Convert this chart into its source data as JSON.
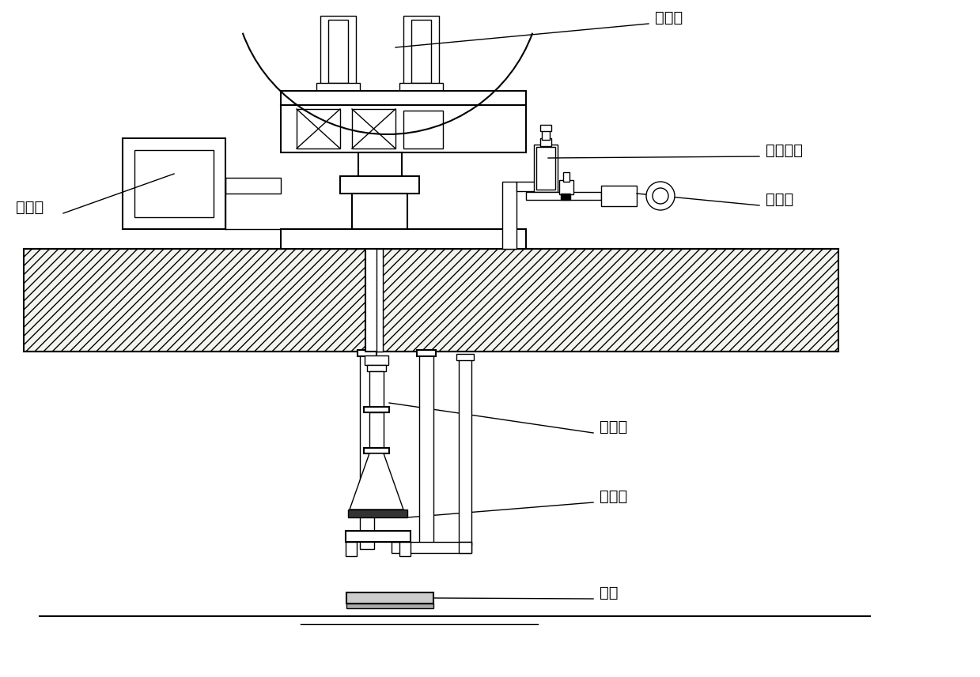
{
  "bg_color": "#ffffff",
  "line_color": "#000000",
  "labels": {
    "fenzi_beng": "分子泵",
    "lizi_beng": "离子泵",
    "daoxiang_xianquan": "导向线圈",
    "jixie_beng": "机械泵",
    "saomiao_qi": "扫描器",
    "saomiao_pan": "扫描盘",
    "tai_chuang": "钛窗"
  },
  "fontsize": 14
}
